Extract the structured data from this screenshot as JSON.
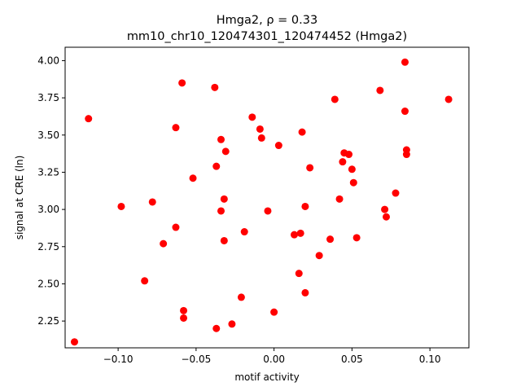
{
  "chart_data": {
    "type": "scatter",
    "title_line1": "Hmga2, ρ = 0.33",
    "title_line2": "mm10_chr10_120474301_120474452 (Hmga2)",
    "xlabel": "motif activity",
    "ylabel": "signal at CRE (ln)",
    "xlim": [
      -0.134,
      0.125
    ],
    "ylim": [
      2.07,
      4.09
    ],
    "xticks": [
      -0.1,
      -0.05,
      0.0,
      0.05,
      0.1
    ],
    "xtick_labels": [
      "−0.10",
      "−0.05",
      "0.00",
      "0.05",
      "0.10"
    ],
    "yticks": [
      2.25,
      2.5,
      2.75,
      3.0,
      3.25,
      3.5,
      3.75,
      4.0
    ],
    "ytick_labels": [
      "2.25",
      "2.50",
      "2.75",
      "3.00",
      "3.25",
      "3.50",
      "3.75",
      "4.00"
    ],
    "grid": false,
    "marker_color": "#ff0000",
    "points": [
      {
        "x": -0.128,
        "y": 2.11
      },
      {
        "x": -0.119,
        "y": 3.61
      },
      {
        "x": -0.098,
        "y": 3.02
      },
      {
        "x": -0.083,
        "y": 2.52
      },
      {
        "x": -0.078,
        "y": 3.05
      },
      {
        "x": -0.071,
        "y": 2.77
      },
      {
        "x": -0.063,
        "y": 3.55
      },
      {
        "x": -0.063,
        "y": 2.88
      },
      {
        "x": -0.059,
        "y": 3.85
      },
      {
        "x": -0.058,
        "y": 2.32
      },
      {
        "x": -0.058,
        "y": 2.27
      },
      {
        "x": -0.052,
        "y": 3.21
      },
      {
        "x": -0.038,
        "y": 3.82
      },
      {
        "x": -0.037,
        "y": 3.29
      },
      {
        "x": -0.037,
        "y": 2.2
      },
      {
        "x": -0.034,
        "y": 3.47
      },
      {
        "x": -0.034,
        "y": 2.99
      },
      {
        "x": -0.032,
        "y": 3.07
      },
      {
        "x": -0.032,
        "y": 2.79
      },
      {
        "x": -0.031,
        "y": 3.39
      },
      {
        "x": -0.027,
        "y": 2.23
      },
      {
        "x": -0.021,
        "y": 2.41
      },
      {
        "x": -0.019,
        "y": 2.85
      },
      {
        "x": -0.014,
        "y": 3.62
      },
      {
        "x": -0.009,
        "y": 3.54
      },
      {
        "x": -0.008,
        "y": 3.48
      },
      {
        "x": -0.004,
        "y": 2.99
      },
      {
        "x": 0.0,
        "y": 2.31
      },
      {
        "x": 0.003,
        "y": 3.43
      },
      {
        "x": 0.013,
        "y": 2.83
      },
      {
        "x": 0.016,
        "y": 2.57
      },
      {
        "x": 0.017,
        "y": 2.84
      },
      {
        "x": 0.018,
        "y": 3.52
      },
      {
        "x": 0.02,
        "y": 3.02
      },
      {
        "x": 0.02,
        "y": 2.44
      },
      {
        "x": 0.023,
        "y": 3.28
      },
      {
        "x": 0.029,
        "y": 2.69
      },
      {
        "x": 0.036,
        "y": 2.8
      },
      {
        "x": 0.039,
        "y": 3.74
      },
      {
        "x": 0.042,
        "y": 3.07
      },
      {
        "x": 0.044,
        "y": 3.32
      },
      {
        "x": 0.045,
        "y": 3.38
      },
      {
        "x": 0.048,
        "y": 3.37
      },
      {
        "x": 0.05,
        "y": 3.27
      },
      {
        "x": 0.051,
        "y": 3.18
      },
      {
        "x": 0.053,
        "y": 2.81
      },
      {
        "x": 0.068,
        "y": 3.8
      },
      {
        "x": 0.071,
        "y": 3.0
      },
      {
        "x": 0.072,
        "y": 2.95
      },
      {
        "x": 0.078,
        "y": 3.11
      },
      {
        "x": 0.084,
        "y": 3.99
      },
      {
        "x": 0.084,
        "y": 3.66
      },
      {
        "x": 0.085,
        "y": 3.4
      },
      {
        "x": 0.085,
        "y": 3.37
      },
      {
        "x": 0.112,
        "y": 3.74
      }
    ]
  }
}
